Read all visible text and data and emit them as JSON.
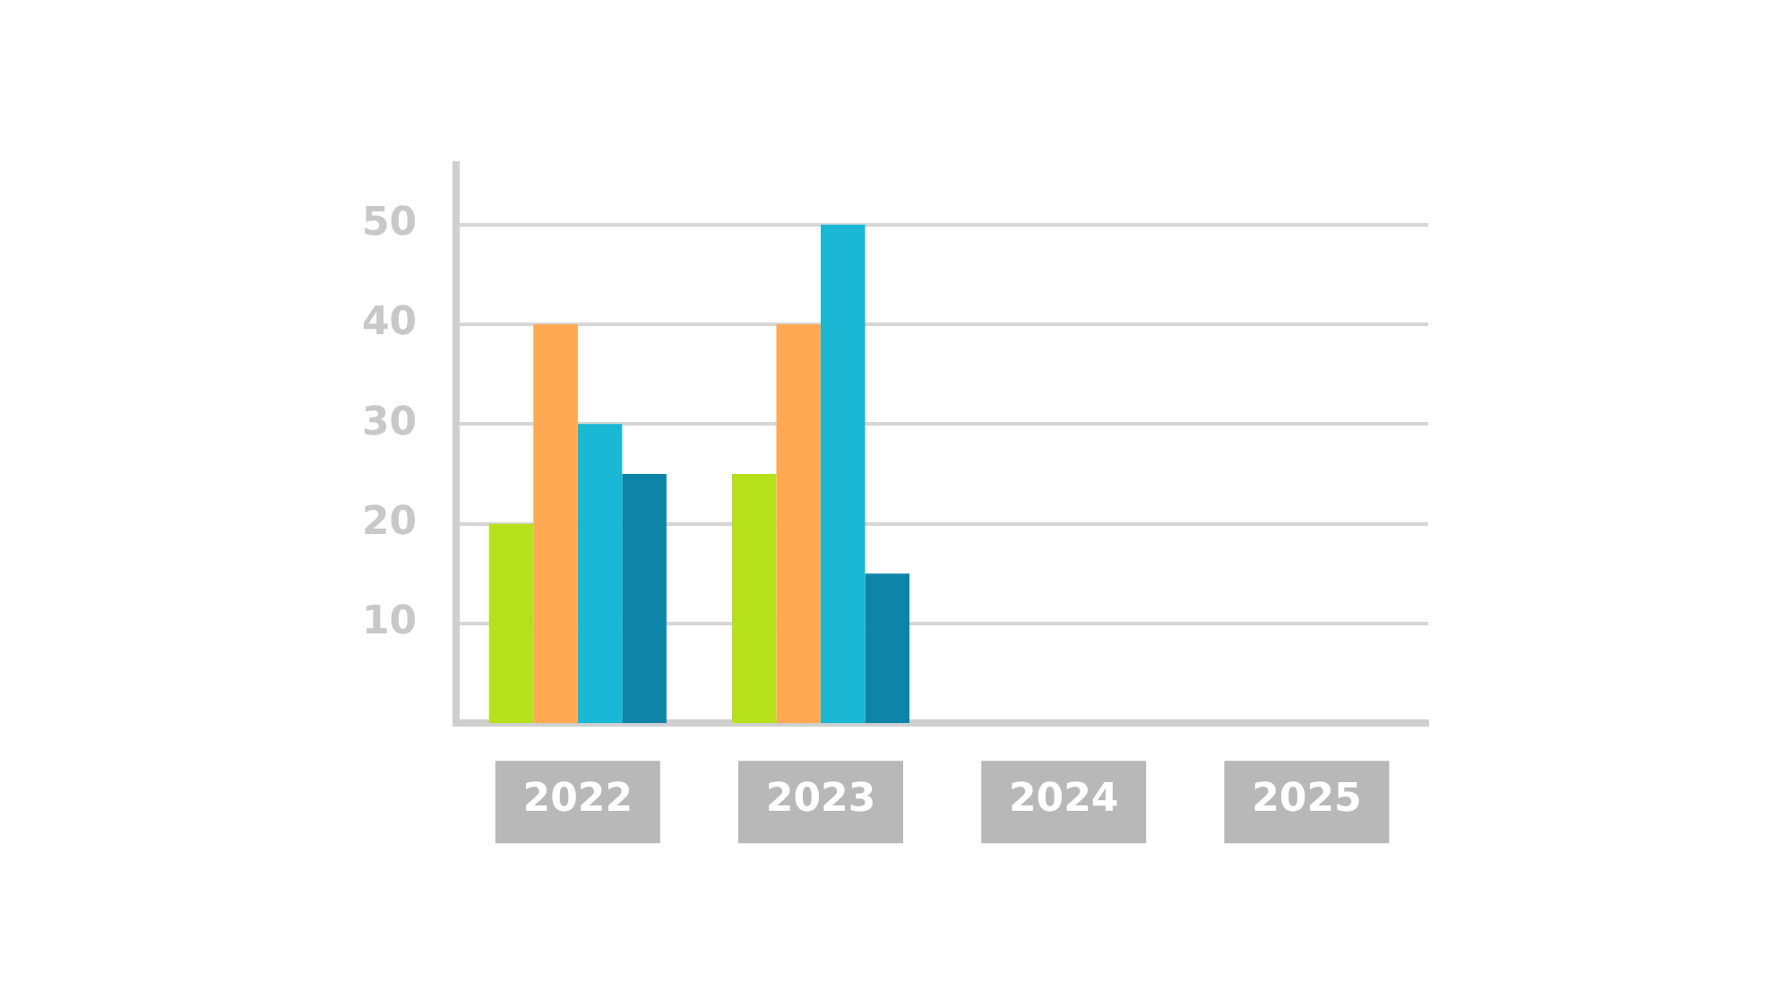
{
  "chart_data": {
    "type": "bar",
    "categories": [
      "2022",
      "2023",
      "2024",
      "2025"
    ],
    "series": [
      {
        "color": "#b5e01a",
        "values": [
          20,
          25,
          null,
          null
        ]
      },
      {
        "color": "#ffa952",
        "values": [
          40,
          40,
          null,
          null
        ]
      },
      {
        "color": "#1ab8d4",
        "values": [
          30,
          50,
          null,
          null
        ]
      },
      {
        "color": "#0d84a8",
        "values": [
          25,
          15,
          null,
          null
        ]
      }
    ],
    "ylim": [
      0,
      56
    ],
    "yticks": [
      10,
      20,
      30,
      40,
      50
    ],
    "grid": "y"
  }
}
